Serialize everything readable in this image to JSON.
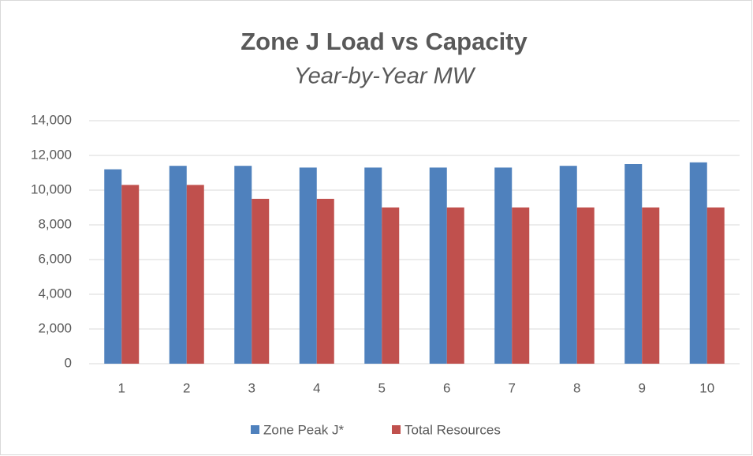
{
  "chart_data": {
    "type": "bar",
    "title": "Zone J Load vs Capacity",
    "subtitle": "Year-by-Year MW",
    "categories": [
      "1",
      "2",
      "3",
      "4",
      "5",
      "6",
      "7",
      "8",
      "9",
      "10"
    ],
    "series": [
      {
        "name": "Zone Peak J*",
        "color": "#4f81bd",
        "values": [
          11200,
          11400,
          11400,
          11300,
          11300,
          11300,
          11300,
          11400,
          11500,
          11600
        ]
      },
      {
        "name": "Total Resources",
        "color": "#c0504d",
        "values": [
          10300,
          10300,
          9500,
          9500,
          9000,
          9000,
          9000,
          9000,
          9000,
          9000
        ]
      }
    ],
    "ylim": [
      0,
      14000
    ],
    "yticks": [
      0,
      {
        "value": 2000,
        "label": "2,000"
      },
      {
        "value": 4000,
        "label": "4,000"
      },
      {
        "value": 6000,
        "label": "6,000"
      },
      {
        "value": 8000,
        "label": "8,000"
      },
      {
        "value": 10000,
        "label": "10,000"
      },
      {
        "value": 12000,
        "label": "12,000"
      },
      {
        "value": 14000,
        "label": "14,000"
      }
    ],
    "grid": true,
    "legend": "bottom"
  }
}
